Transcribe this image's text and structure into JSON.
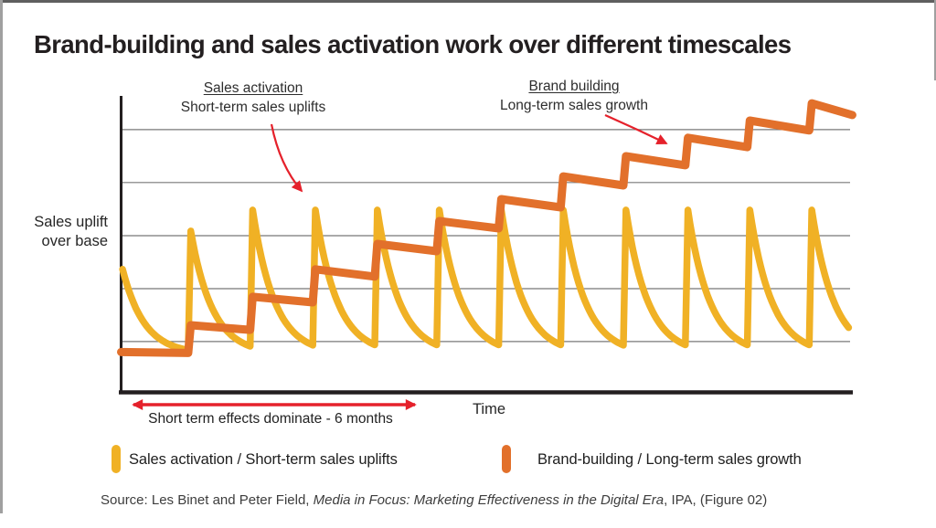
{
  "title": "Brand-building and sales activation work over different timescales",
  "annotations": {
    "sales": {
      "heading": "Sales activation",
      "subheading": "Short-term sales uplifts"
    },
    "brand": {
      "heading": "Brand building",
      "subheading": "Long-term sales growth"
    }
  },
  "axes": {
    "y_label_line1": "Sales uplift",
    "y_label_line2": "over base",
    "x_label": "Time"
  },
  "span_note": "Short term effects dominate - 6 months",
  "legend": [
    {
      "label": "Sales activation / Short-term sales uplifts",
      "color": "#F0B125"
    },
    {
      "label": "Brand-building / Long-term sales growth",
      "color": "#E2702B"
    }
  ],
  "source": {
    "prefix": "Source: Les Binet and Peter Field, ",
    "italic_title": "Media in Focus: Marketing Effectiveness in the Digital Era",
    "suffix": ", IPA, (Figure 02)"
  },
  "colors": {
    "activation_yellow": "#F0B125",
    "brand_orange": "#E2702B",
    "arrow_red": "#E5212B",
    "grid_gray": "#787878",
    "axis_black": "#231F20",
    "title_text": "#231F20"
  },
  "chart_data": {
    "type": "line",
    "title": "Brand-building and sales activation work over different timescales",
    "xlabel": "Time",
    "ylabel": "Sales uplift over base",
    "x_range": [
      0,
      100
    ],
    "y_range": [
      0,
      100
    ],
    "numeric_ticks": false,
    "grid": true,
    "y_gridlines": [
      16.6,
      34.7,
      52.8,
      71,
      89.1
    ],
    "series": [
      {
        "name": "Sales activation / Short-term sales uplifts",
        "type": "spike-decay",
        "color": "#F0B125",
        "stroke_width": 7.5,
        "start_point": {
          "x": 0.2,
          "y": 41.3
        },
        "spike_x": [
          9.2,
          17.7,
          26.3,
          34.8,
          43.3,
          51.8,
          60.3,
          68.9,
          77.4,
          85.9,
          94.4
        ],
        "spike_peak_y": [
          54.4,
          61.6,
          61.6,
          61.6,
          61.6,
          61.6,
          61.6,
          61.6,
          61.6,
          61.6,
          61.6
        ],
        "decay_base_y": 12.2,
        "decay_tau_x": 3.0,
        "end_x": 99.8
      },
      {
        "name": "Brand-building / Long-term sales growth",
        "type": "step-line",
        "color": "#E2702B",
        "stroke_width": 9,
        "points": [
          [
            0,
            13
          ],
          [
            9.2,
            12.7
          ],
          [
            9.55,
            22.2
          ],
          [
            17.7,
            20.6
          ],
          [
            18.05,
            31.9
          ],
          [
            26.3,
            30
          ],
          [
            26.65,
            41.3
          ],
          [
            34.8,
            38.8
          ],
          [
            35.15,
            50
          ],
          [
            43.3,
            47.5
          ],
          [
            43.65,
            57.8
          ],
          [
            51.8,
            55.3
          ],
          [
            52.15,
            65.3
          ],
          [
            60.3,
            62.5
          ],
          [
            60.65,
            73.1
          ],
          [
            68.9,
            70
          ],
          [
            69.25,
            80
          ],
          [
            77.4,
            76.9
          ],
          [
            77.75,
            86.3
          ],
          [
            85.9,
            83.1
          ],
          [
            86.25,
            92.2
          ],
          [
            94.4,
            88.8
          ],
          [
            94.75,
            98.1
          ],
          [
            100.3,
            94.1
          ]
        ]
      }
    ],
    "annotations": [
      {
        "text": "Sales activation / Short-term sales uplifts",
        "points_to": "yellow spike series"
      },
      {
        "text": "Brand building / Long-term sales growth",
        "points_to": "orange step series"
      },
      {
        "text": "Short term effects dominate - 6 months",
        "span": "first ~6 periods of x axis"
      }
    ]
  }
}
